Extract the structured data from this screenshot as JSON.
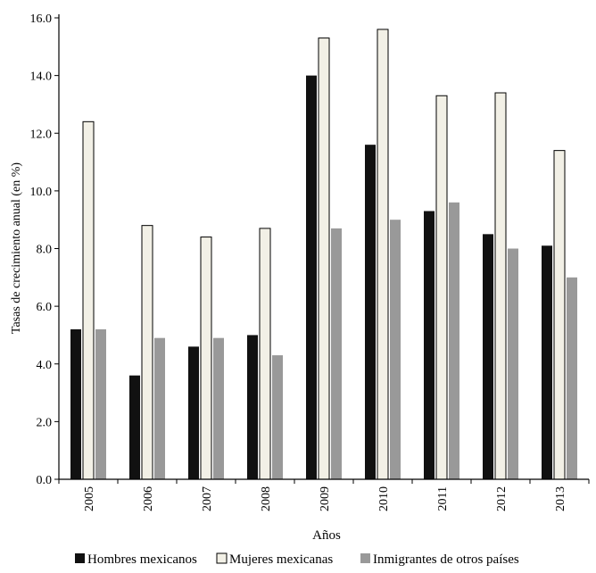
{
  "chart_data": {
    "type": "bar",
    "title": "",
    "xlabel": "Años",
    "ylabel": "Tasas de crecimiento anual (en %)",
    "ylim": [
      0,
      16
    ],
    "yticks": [
      "0.0",
      "2.0",
      "4.0",
      "6.0",
      "8.0",
      "10.0",
      "12.0",
      "14.0",
      "16.0"
    ],
    "categories": [
      "2005",
      "2006",
      "2007",
      "2008",
      "2009",
      "2010",
      "2011",
      "2012",
      "2013"
    ],
    "series": [
      {
        "name": "Hombres mexicanos",
        "color": "#111111",
        "values": [
          5.2,
          3.6,
          4.6,
          5.0,
          14.0,
          11.6,
          9.3,
          8.5,
          8.1
        ]
      },
      {
        "name": "Mujeres mexicanas",
        "color": "#f2f0e6",
        "values": [
          12.4,
          8.8,
          8.4,
          8.7,
          15.3,
          15.6,
          13.3,
          13.4,
          11.4
        ]
      },
      {
        "name": "Inmigrantes de otros países",
        "color": "#999999",
        "values": [
          5.2,
          4.9,
          4.9,
          4.3,
          8.7,
          9.0,
          9.6,
          8.0,
          7.0
        ]
      }
    ],
    "legend_position": "bottom",
    "grid": false
  }
}
